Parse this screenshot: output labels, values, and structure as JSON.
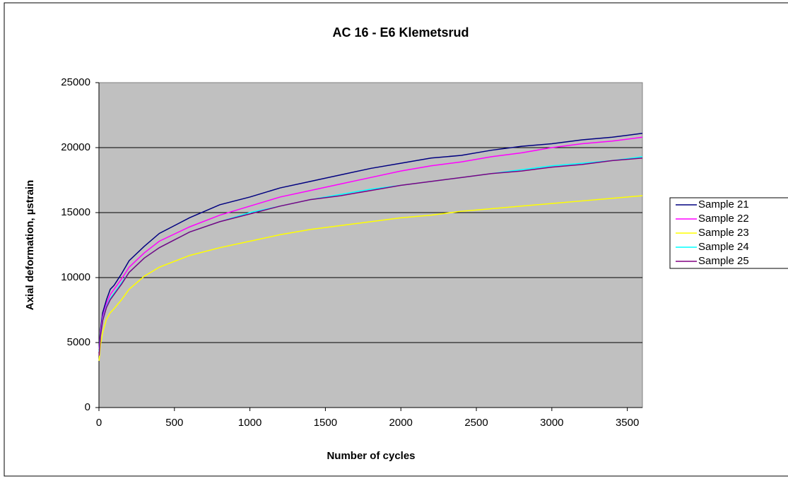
{
  "chart_data": {
    "type": "line",
    "title": "AC 16 - E6 Klemetsrud",
    "x_label": "Number of cycles",
    "y_label": "Axial deformation, µstrain",
    "x": [
      1,
      10,
      25,
      50,
      75,
      100,
      150,
      200,
      300,
      400,
      600,
      800,
      1000,
      1200,
      1400,
      1600,
      1800,
      2000,
      2200,
      2400,
      2600,
      2800,
      3000,
      3200,
      3400,
      3600
    ],
    "series": [
      {
        "name": "Sample 21",
        "color": "#000080",
        "values": [
          4500,
          6000,
          7300,
          8300,
          9100,
          9400,
          10300,
          11300,
          12400,
          13400,
          14600,
          15600,
          16200,
          16900,
          17400,
          17900,
          18400,
          18800,
          19200,
          19400,
          19800,
          20100,
          20300,
          20600,
          20800,
          21100
        ]
      },
      {
        "name": "Sample 22",
        "color": "#ff00ff",
        "values": [
          4500,
          5800,
          7000,
          8000,
          8700,
          9100,
          9900,
          10800,
          11900,
          12800,
          13900,
          14800,
          15500,
          16200,
          16700,
          17200,
          17700,
          18200,
          18600,
          18900,
          19300,
          19600,
          20000,
          20300,
          20500,
          20800
        ]
      },
      {
        "name": "Sample 23",
        "color": "#ffff00",
        "values": [
          3600,
          4800,
          5800,
          6800,
          7300,
          7600,
          8300,
          9100,
          10100,
          10800,
          11700,
          12300,
          12800,
          13300,
          13700,
          14000,
          14300,
          14600,
          14800,
          15100,
          15300,
          15500,
          15700,
          15900,
          16100,
          16300
        ]
      },
      {
        "name": "Sample 24",
        "color": "#00ffff",
        "values": [
          4300,
          5600,
          6800,
          7800,
          8400,
          8800,
          9600,
          10400,
          11500,
          12300,
          13500,
          14300,
          15000,
          15500,
          16000,
          16400,
          16800,
          17100,
          17400,
          17700,
          18000,
          18300,
          18600,
          18800,
          19000,
          19300
        ]
      },
      {
        "name": "Sample 25",
        "color": "#800080",
        "values": [
          4000,
          5500,
          6700,
          7700,
          8300,
          8700,
          9500,
          10400,
          11500,
          12300,
          13500,
          14300,
          14900,
          15500,
          16000,
          16300,
          16700,
          17100,
          17400,
          17700,
          18000,
          18200,
          18500,
          18700,
          19000,
          19200
        ]
      }
    ],
    "xlim": [
      0,
      3600
    ],
    "xticks": [
      0,
      500,
      1000,
      1500,
      2000,
      2500,
      3000,
      3500
    ],
    "ylim": [
      0,
      25000
    ],
    "yticks": [
      0,
      5000,
      10000,
      15000,
      20000,
      25000
    ],
    "grid": true,
    "legend": "right",
    "plot_background": "#c0c0c0"
  }
}
